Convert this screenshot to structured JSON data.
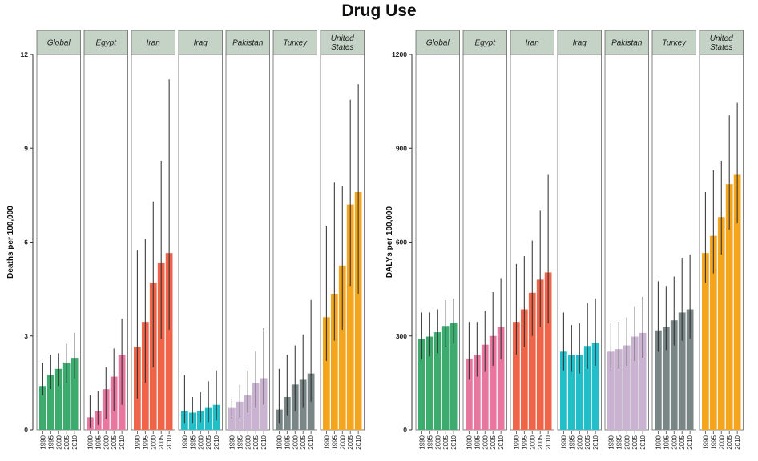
{
  "title": "Drug Use",
  "colors": {
    "Global": "#3daa6e",
    "Egypt": "#e8779f",
    "Iran": "#f06449",
    "Iraq": "#22bfc9",
    "Pakistan": "#c9b3d1",
    "Turkey": "#7a8585",
    "United States": "#f2a51d",
    "strip": "#c4d3c5"
  },
  "chart_data": [
    {
      "type": "bar",
      "ylabel": "Deaths per 100,000",
      "ylim": [
        0,
        12
      ],
      "yticks": [
        0,
        3,
        6,
        9,
        12
      ],
      "ytick_labels": [
        "0",
        "3",
        "6",
        "9",
        "12"
      ],
      "years": [
        "1990",
        "1995",
        "2000",
        "2005",
        "2010"
      ],
      "panels": [
        {
          "name": "Global",
          "label_lines": [
            "Global"
          ],
          "values": [
            1.4,
            1.75,
            1.95,
            2.15,
            2.3
          ],
          "lower": [
            1.1,
            1.3,
            1.4,
            1.5,
            1.65
          ],
          "upper": [
            2.15,
            2.4,
            2.45,
            2.75,
            3.1
          ]
        },
        {
          "name": "Egypt",
          "label_lines": [
            "Egypt"
          ],
          "values": [
            0.4,
            0.6,
            1.3,
            1.7,
            2.4
          ],
          "lower": [
            0.05,
            0.15,
            0.35,
            0.6,
            0.8
          ],
          "upper": [
            1.1,
            1.25,
            2.0,
            2.6,
            3.55
          ]
        },
        {
          "name": "Iran",
          "label_lines": [
            "Iran"
          ],
          "values": [
            2.65,
            3.45,
            4.7,
            5.35,
            5.65
          ],
          "lower": [
            1.0,
            1.5,
            2.0,
            2.9,
            3.2
          ],
          "upper": [
            5.75,
            6.1,
            7.3,
            8.6,
            11.2
          ]
        },
        {
          "name": "Iraq",
          "label_lines": [
            "Iraq"
          ],
          "values": [
            0.6,
            0.55,
            0.6,
            0.7,
            0.8
          ],
          "lower": [
            0.2,
            0.2,
            0.25,
            0.25,
            0.3
          ],
          "upper": [
            1.75,
            1.05,
            1.2,
            1.55,
            1.9
          ]
        },
        {
          "name": "Pakistan",
          "label_lines": [
            "Pakistan"
          ],
          "values": [
            0.7,
            0.9,
            1.1,
            1.5,
            1.65
          ],
          "lower": [
            0.35,
            0.4,
            0.55,
            0.7,
            0.8
          ],
          "upper": [
            1.0,
            1.45,
            1.9,
            2.5,
            3.25
          ]
        },
        {
          "name": "Turkey",
          "label_lines": [
            "Turkey"
          ],
          "values": [
            0.65,
            1.05,
            1.45,
            1.6,
            1.8
          ],
          "lower": [
            0.2,
            0.45,
            0.6,
            0.7,
            0.9
          ],
          "upper": [
            1.95,
            2.4,
            2.7,
            3.05,
            4.15
          ]
        },
        {
          "name": "United States",
          "label_lines": [
            "United",
            "States"
          ],
          "values": [
            3.6,
            4.35,
            5.25,
            7.2,
            7.6
          ],
          "lower": [
            2.2,
            2.85,
            3.2,
            4.6,
            4.35
          ],
          "upper": [
            6.5,
            7.9,
            7.8,
            10.55,
            11.05
          ]
        }
      ]
    },
    {
      "type": "bar",
      "ylabel": "DALYs per 100,000",
      "ylim": [
        0,
        1200
      ],
      "yticks": [
        0,
        300,
        600,
        900,
        1200
      ],
      "ytick_labels": [
        "0",
        "300",
        "600",
        "900",
        "1200"
      ],
      "years": [
        "1990",
        "1995",
        "2000",
        "2005",
        "2010"
      ],
      "panels": [
        {
          "name": "Global",
          "label_lines": [
            "Global"
          ],
          "values": [
            290,
            298,
            312,
            332,
            342
          ],
          "lower": [
            225,
            235,
            245,
            265,
            275
          ],
          "upper": [
            375,
            375,
            385,
            415,
            420
          ]
        },
        {
          "name": "Egypt",
          "label_lines": [
            "Egypt"
          ],
          "values": [
            228,
            240,
            272,
            300,
            330
          ],
          "lower": [
            160,
            170,
            185,
            205,
            225
          ],
          "upper": [
            345,
            345,
            380,
            440,
            485
          ]
        },
        {
          "name": "Iran",
          "label_lines": [
            "Iran"
          ],
          "values": [
            345,
            385,
            438,
            480,
            503
          ],
          "lower": [
            240,
            265,
            300,
            330,
            340
          ],
          "upper": [
            530,
            555,
            605,
            700,
            815
          ]
        },
        {
          "name": "Iraq",
          "label_lines": [
            "Iraq"
          ],
          "values": [
            250,
            240,
            240,
            268,
            278
          ],
          "lower": [
            190,
            185,
            180,
            195,
            205
          ],
          "upper": [
            375,
            335,
            340,
            405,
            420
          ]
        },
        {
          "name": "Pakistan",
          "label_lines": [
            "Pakistan"
          ],
          "values": [
            250,
            258,
            270,
            298,
            310
          ],
          "lower": [
            190,
            195,
            205,
            220,
            230
          ],
          "upper": [
            340,
            345,
            360,
            395,
            425
          ]
        },
        {
          "name": "Turkey",
          "label_lines": [
            "Turkey"
          ],
          "values": [
            318,
            330,
            350,
            375,
            385
          ],
          "lower": [
            250,
            255,
            270,
            285,
            290
          ],
          "upper": [
            475,
            460,
            490,
            550,
            560
          ]
        },
        {
          "name": "United States",
          "label_lines": [
            "United",
            "States"
          ],
          "values": [
            565,
            620,
            680,
            785,
            815
          ],
          "lower": [
            470,
            500,
            560,
            640,
            660
          ],
          "upper": [
            760,
            830,
            860,
            1005,
            1045
          ]
        }
      ]
    }
  ]
}
